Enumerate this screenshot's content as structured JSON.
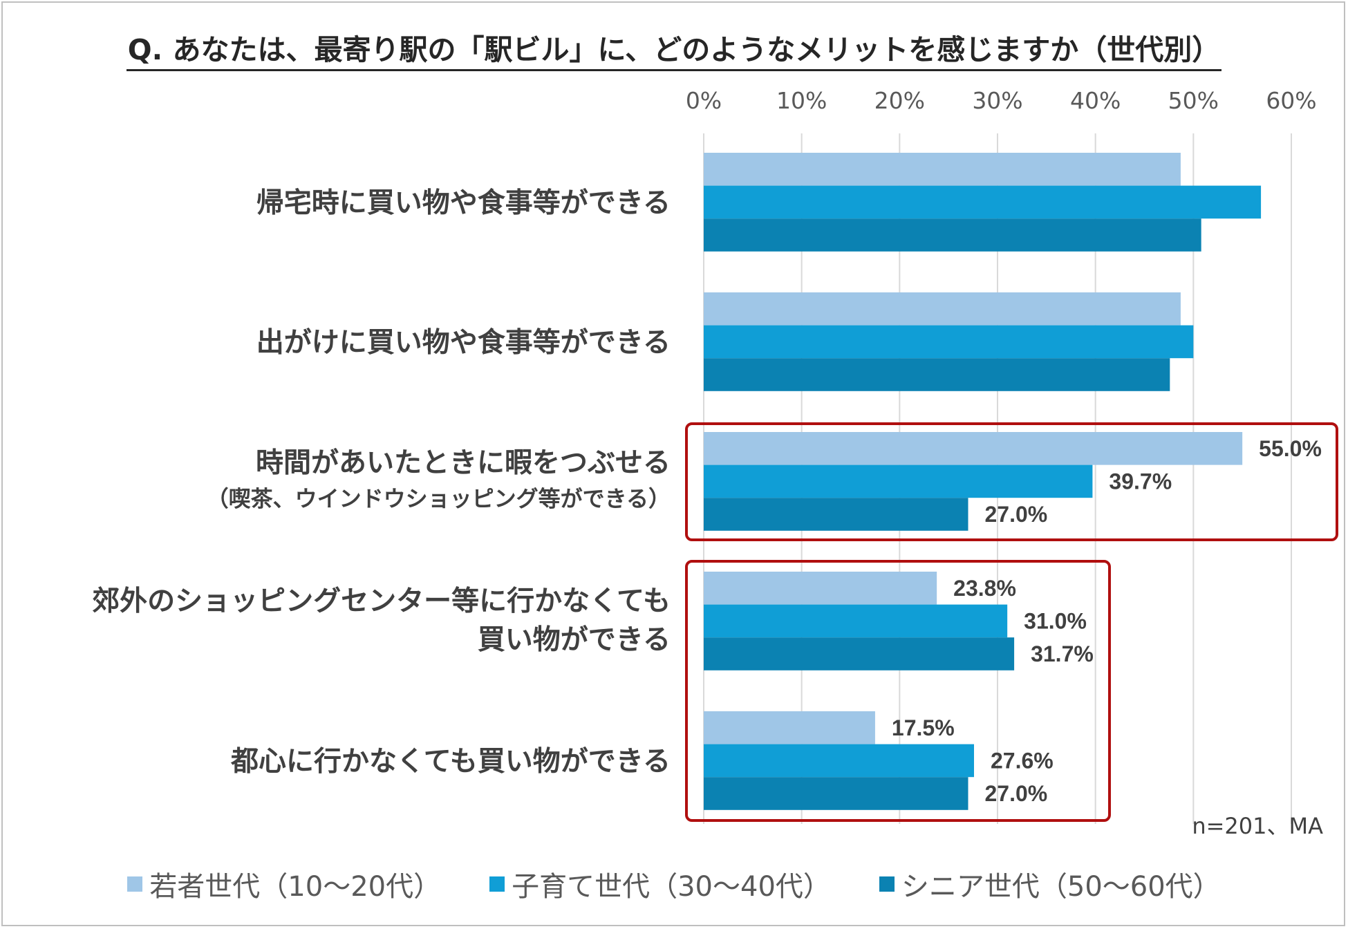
{
  "title": "Q. あなたは、最寄り駅の「駅ビル」に、どのようなメリットを感じますか（世代別）",
  "note": "n=201、MA",
  "colors": {
    "youth": "#9fc6e7",
    "parenting": "#109ed6",
    "senior": "#0b82b2",
    "highlight": "#b00f0f",
    "grid": "#d9d9d9"
  },
  "chart_data": {
    "type": "bar",
    "orientation": "horizontal",
    "x_ticks": [
      "0%",
      "10%",
      "20%",
      "30%",
      "40%",
      "50%",
      "60%"
    ],
    "xlim": [
      0,
      60
    ],
    "grid": true,
    "legend_position": "bottom",
    "categories": [
      {
        "label": "帰宅時に買い物や食事等ができる",
        "sublabel": ""
      },
      {
        "label": "出がけに買い物や食事等ができる",
        "sublabel": ""
      },
      {
        "label": "時間があいたときに暇をつぶせる",
        "sublabel": "（喫茶、ウインドウショッピング等ができる）"
      },
      {
        "label": "郊外のショッピングセンター等に行かなくても",
        "label2": "買い物ができる",
        "sublabel": ""
      },
      {
        "label": "都心に行かなくても買い物ができる",
        "sublabel": ""
      }
    ],
    "series": [
      {
        "name": "若者世代（10～20代）",
        "color": "#9fc6e7",
        "values": [
          48.7,
          48.7,
          55.0,
          23.8,
          17.5
        ],
        "labels": [
          "",
          "",
          "55.0%",
          "23.8%",
          "17.5%"
        ]
      },
      {
        "name": "子育て世代（30～40代）",
        "color": "#109ed6",
        "values": [
          56.9,
          50.0,
          39.7,
          31.0,
          27.6
        ],
        "labels": [
          "",
          "",
          "39.7%",
          "31.0%",
          "27.6%"
        ]
      },
      {
        "name": "シニア世代（50～60代）",
        "color": "#0b82b2",
        "values": [
          50.8,
          47.6,
          27.0,
          31.7,
          27.0
        ],
        "labels": [
          "",
          "",
          "27.0%",
          "31.7%",
          "27.0%"
        ]
      }
    ],
    "highlight_groups": [
      [
        2
      ],
      [
        3,
        4
      ]
    ]
  }
}
